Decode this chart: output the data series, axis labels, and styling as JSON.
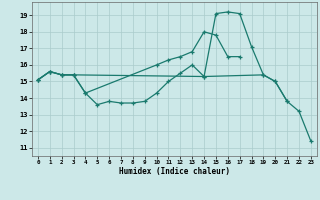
{
  "xlabel": "Humidex (Indice chaleur)",
  "bg_color": "#cce8e8",
  "grid_color": "#aacccc",
  "line_color": "#1a7a6e",
  "xlim": [
    -0.5,
    23.5
  ],
  "ylim": [
    10.5,
    19.8
  ],
  "yticks": [
    11,
    12,
    13,
    14,
    15,
    16,
    17,
    18,
    19
  ],
  "xticks": [
    0,
    1,
    2,
    3,
    4,
    5,
    6,
    7,
    8,
    9,
    10,
    11,
    12,
    13,
    14,
    15,
    16,
    17,
    18,
    19,
    20,
    21,
    22,
    23
  ],
  "curve1_x": [
    0,
    1,
    2,
    3,
    4,
    5,
    6,
    7,
    8,
    9,
    10,
    11,
    12,
    13,
    14,
    15,
    16,
    17,
    18,
    19,
    20,
    21
  ],
  "curve1_y": [
    15.1,
    15.6,
    15.4,
    15.4,
    14.3,
    13.6,
    13.8,
    13.7,
    13.7,
    13.8,
    14.3,
    15.0,
    15.5,
    16.0,
    15.3,
    19.1,
    19.2,
    19.1,
    17.1,
    15.4,
    15.0,
    13.8
  ],
  "curve2_x": [
    0,
    1,
    2,
    3,
    4,
    10,
    11,
    12,
    13,
    14,
    15,
    16,
    17
  ],
  "curve2_y": [
    15.1,
    15.6,
    15.4,
    15.4,
    14.3,
    16.0,
    16.3,
    16.5,
    16.8,
    18.0,
    17.8,
    16.5,
    16.5
  ],
  "curve3_x": [
    0,
    1,
    2,
    3,
    14,
    19,
    20,
    21,
    22,
    23
  ],
  "curve3_y": [
    15.1,
    15.6,
    15.4,
    15.4,
    15.3,
    15.4,
    15.0,
    13.8,
    13.2,
    11.4
  ]
}
